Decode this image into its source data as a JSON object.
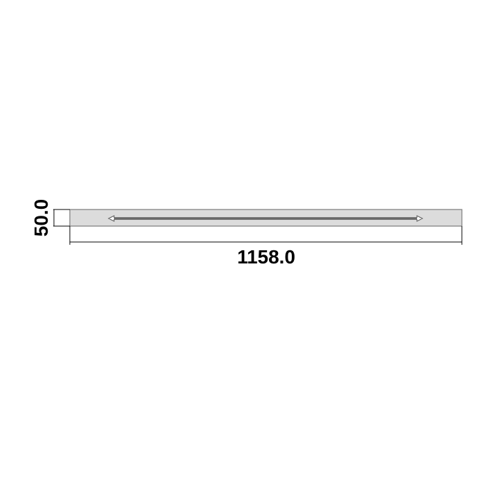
{
  "dimensions": {
    "width_label": "1158.0",
    "height_label": "50.0"
  },
  "colors": {
    "panel_fill": "#dcdcdc",
    "panel_stroke": "#7a7a7a",
    "dimension_line": "#000000",
    "arrow_stroke": "#555555",
    "arrow_fill": "#ffffff"
  }
}
